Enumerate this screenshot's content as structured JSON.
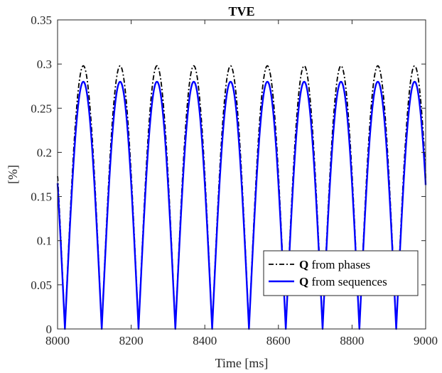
{
  "chart_data": {
    "type": "line",
    "title": "TVE",
    "xlabel": "Time [ms]",
    "ylabel": "[%]",
    "xlim": [
      8000,
      9000
    ],
    "ylim": [
      0,
      0.35
    ],
    "xticks": [
      8000,
      8200,
      8400,
      8600,
      8800,
      9000
    ],
    "yticks": [
      0,
      0.05,
      0.1,
      0.15,
      0.2,
      0.25,
      0.3,
      0.35
    ],
    "xtick_labels": [
      "8000",
      "8200",
      "8400",
      "8600",
      "8800",
      "9000"
    ],
    "ytick_labels": [
      "0",
      "0.05",
      "0.1",
      "0.15",
      "0.2",
      "0.25",
      "0.3",
      "0.35"
    ],
    "grid": false,
    "legend_position": "bottom-right",
    "period_ms": 100,
    "zero_offset_ms": 20,
    "series": [
      {
        "name_bold": "Q",
        "name_rest": " from phases",
        "color": "#000000",
        "style": "dash-dot",
        "peak": 0.298,
        "start_value": 0.173,
        "end_value": 0.17
      },
      {
        "name_bold": "Q",
        "name_rest": " from sequences",
        "color": "#0000ff",
        "style": "solid",
        "peak": 0.28,
        "start_value": 0.165,
        "end_value": 0.163
      }
    ]
  }
}
